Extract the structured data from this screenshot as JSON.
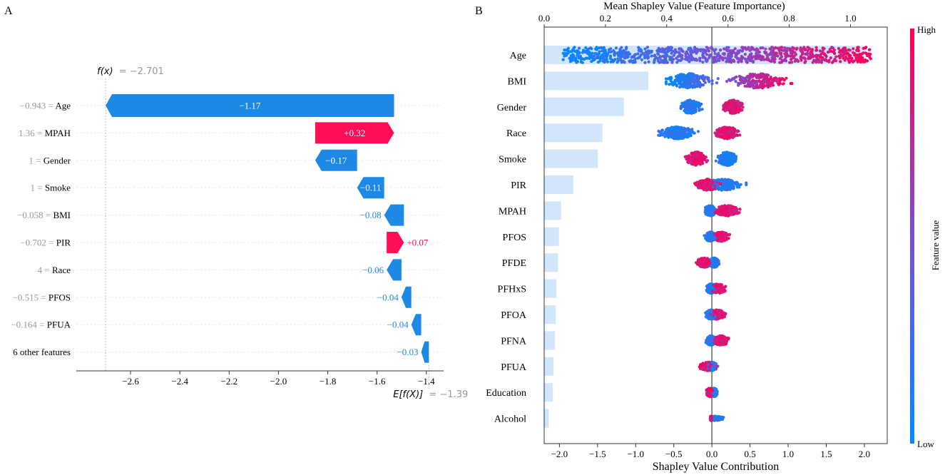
{
  "panels": {
    "a_label": "A",
    "b_label": "B"
  },
  "colors": {
    "positive": "#ff0d57",
    "negative": "#1e88e5",
    "bar_light": "#cfe4fb",
    "grey_text": "#999999",
    "grid": "#e6e6e6"
  },
  "chart_data": [
    {
      "type": "waterfall",
      "title": "",
      "fx_prefix": "f(x)",
      "fx_value": "= −2.701",
      "fx": -2.701,
      "ex_prefix": "E[f(X)]",
      "ex_value": "= −1.39",
      "ex": -1.39,
      "xlim": [
        -2.82,
        -1.33
      ],
      "xticks": [
        -2.6,
        -2.4,
        -2.2,
        -2.0,
        -1.8,
        -1.6,
        -1.4
      ],
      "xtick_labels": [
        "−2.6",
        "−2.4",
        "−2.2",
        "−2.0",
        "−1.8",
        "−1.6",
        "−1.4"
      ],
      "rows": [
        {
          "value_label": "−0.943 = ",
          "feature": "Age",
          "start": -1.531,
          "end": -2.701,
          "contribution": -1.17,
          "label": "−1.17",
          "inside": true
        },
        {
          "value_label": "1.36 = ",
          "feature": "MPAH",
          "start": -1.851,
          "end": -1.531,
          "contribution": 0.32,
          "label": "+0.32",
          "inside": true
        },
        {
          "value_label": "1 = ",
          "feature": "Gender",
          "start": -1.681,
          "end": -1.851,
          "contribution": -0.17,
          "label": "−0.17",
          "inside": true
        },
        {
          "value_label": "1 = ",
          "feature": "Smoke",
          "start": -1.571,
          "end": -1.681,
          "contribution": -0.11,
          "label": "−0.11",
          "inside": true
        },
        {
          "value_label": "−0.058 = ",
          "feature": "BMI",
          "start": -1.491,
          "end": -1.571,
          "contribution": -0.08,
          "label": "−0.08",
          "inside": false
        },
        {
          "value_label": "−0.702 = ",
          "feature": "PIR",
          "start": -1.561,
          "end": -1.491,
          "contribution": 0.07,
          "label": "+0.07",
          "inside": false
        },
        {
          "value_label": "4 = ",
          "feature": "Race",
          "start": -1.501,
          "end": -1.561,
          "contribution": -0.06,
          "label": "−0.06",
          "inside": false
        },
        {
          "value_label": "−0.515 = ",
          "feature": "PFOS",
          "start": -1.461,
          "end": -1.501,
          "contribution": -0.04,
          "label": "−0.04",
          "inside": false
        },
        {
          "value_label": "−0.164 = ",
          "feature": "PFUA",
          "start": -1.421,
          "end": -1.461,
          "contribution": -0.04,
          "label": "−0.04",
          "inside": false
        },
        {
          "value_label": "",
          "feature": "6 other features",
          "start": -1.39,
          "end": -1.421,
          "contribution": -0.03,
          "label": "−0.03",
          "inside": false
        }
      ]
    },
    {
      "type": "beeswarm_with_bar",
      "top_axis_label": "Mean Shapley Value (Feature Importance)",
      "xlabel": "Shapley Value Contribution",
      "colorbar_label": "Feature value",
      "colorbar_high": "High",
      "colorbar_low": "Low",
      "top_xlim": [
        0,
        1.12
      ],
      "top_xticks": [
        0.0,
        0.2,
        0.4,
        0.6,
        0.8,
        1.0
      ],
      "top_xtick_labels": [
        "0.0",
        "0.2",
        "0.4",
        "0.6",
        "0.8",
        "1.0"
      ],
      "xlim": [
        -2.2,
        2.3
      ],
      "xticks": [
        -2.0,
        -1.5,
        -1.0,
        -0.5,
        0.0,
        0.5,
        1.0,
        1.5,
        2.0
      ],
      "xtick_labels": [
        "−2.0",
        "−1.5",
        "−1.0",
        "−0.5",
        "0.0",
        "0.5",
        "1.0",
        "1.5",
        "2.0"
      ],
      "features": [
        {
          "name": "Age",
          "importance": 1.05,
          "shap_min": -1.95,
          "shap_max": 2.1,
          "low_center": -1.4,
          "low_spread": 0.5,
          "high_center": 1.3,
          "high_spread": 0.55,
          "thickness": 1.0
        },
        {
          "name": "BMI",
          "importance": 0.34,
          "shap_min": -0.6,
          "shap_max": 1.05,
          "low_center": -0.3,
          "low_spread": 0.25,
          "high_center": 0.6,
          "high_spread": 0.3,
          "thickness": 0.85
        },
        {
          "name": "Gender",
          "importance": 0.26,
          "shap_min": -0.45,
          "shap_max": 0.45,
          "low_center": -0.28,
          "low_spread": 0.1,
          "high_center": 0.28,
          "high_spread": 0.1,
          "thickness": 0.8
        },
        {
          "name": "Race",
          "importance": 0.19,
          "shap_min": -0.7,
          "shap_max": 0.4,
          "low_center": -0.45,
          "low_spread": 0.2,
          "high_center": 0.2,
          "high_spread": 0.12,
          "thickness": 0.7
        },
        {
          "name": "Smoke",
          "importance": 0.175,
          "shap_min": -0.35,
          "shap_max": 0.35,
          "low_center": 0.2,
          "low_spread": 0.1,
          "high_center": -0.2,
          "high_spread": 0.1,
          "thickness": 0.8
        },
        {
          "name": "PIR",
          "importance": 0.095,
          "shap_min": -0.3,
          "shap_max": 0.45,
          "low_center": 0.15,
          "low_spread": 0.18,
          "high_center": -0.05,
          "high_spread": 0.12,
          "thickness": 0.65
        },
        {
          "name": "MPAH",
          "importance": 0.055,
          "shap_min": -0.15,
          "shap_max": 0.45,
          "low_center": -0.02,
          "low_spread": 0.06,
          "high_center": 0.2,
          "high_spread": 0.14,
          "thickness": 0.6
        },
        {
          "name": "PFOS",
          "importance": 0.048,
          "shap_min": -0.1,
          "shap_max": 0.3,
          "low_center": -0.02,
          "low_spread": 0.05,
          "high_center": 0.12,
          "high_spread": 0.08,
          "thickness": 0.55
        },
        {
          "name": "PFDE",
          "importance": 0.045,
          "shap_min": -0.25,
          "shap_max": 0.15,
          "low_center": 0.03,
          "low_spread": 0.05,
          "high_center": -0.1,
          "high_spread": 0.08,
          "thickness": 0.55
        },
        {
          "name": "PFHxS",
          "importance": 0.04,
          "shap_min": -0.15,
          "shap_max": 0.25,
          "low_center": -0.01,
          "low_spread": 0.05,
          "high_center": 0.08,
          "high_spread": 0.08,
          "thickness": 0.55
        },
        {
          "name": "PFOA",
          "importance": 0.038,
          "shap_min": -0.15,
          "shap_max": 0.25,
          "low_center": -0.01,
          "low_spread": 0.05,
          "high_center": 0.07,
          "high_spread": 0.08,
          "thickness": 0.55
        },
        {
          "name": "PFNA",
          "importance": 0.035,
          "shap_min": -0.1,
          "shap_max": 0.3,
          "low_center": -0.01,
          "low_spread": 0.05,
          "high_center": 0.12,
          "high_spread": 0.08,
          "thickness": 0.55
        },
        {
          "name": "PFUA",
          "importance": 0.03,
          "shap_min": -0.2,
          "shap_max": 0.2,
          "low_center": 0.0,
          "low_spread": 0.05,
          "high_center": -0.05,
          "high_spread": 0.08,
          "thickness": 0.5
        },
        {
          "name": "Education",
          "importance": 0.028,
          "shap_min": -0.1,
          "shap_max": 0.12,
          "low_center": 0.03,
          "low_spread": 0.03,
          "high_center": -0.02,
          "high_spread": 0.04,
          "thickness": 0.5
        },
        {
          "name": "Alcohol",
          "importance": 0.015,
          "shap_min": -0.02,
          "shap_max": 0.28,
          "low_center": 0.05,
          "low_spread": 0.08,
          "high_center": -0.01,
          "high_spread": 0.01,
          "thickness": 0.25
        }
      ]
    }
  ]
}
